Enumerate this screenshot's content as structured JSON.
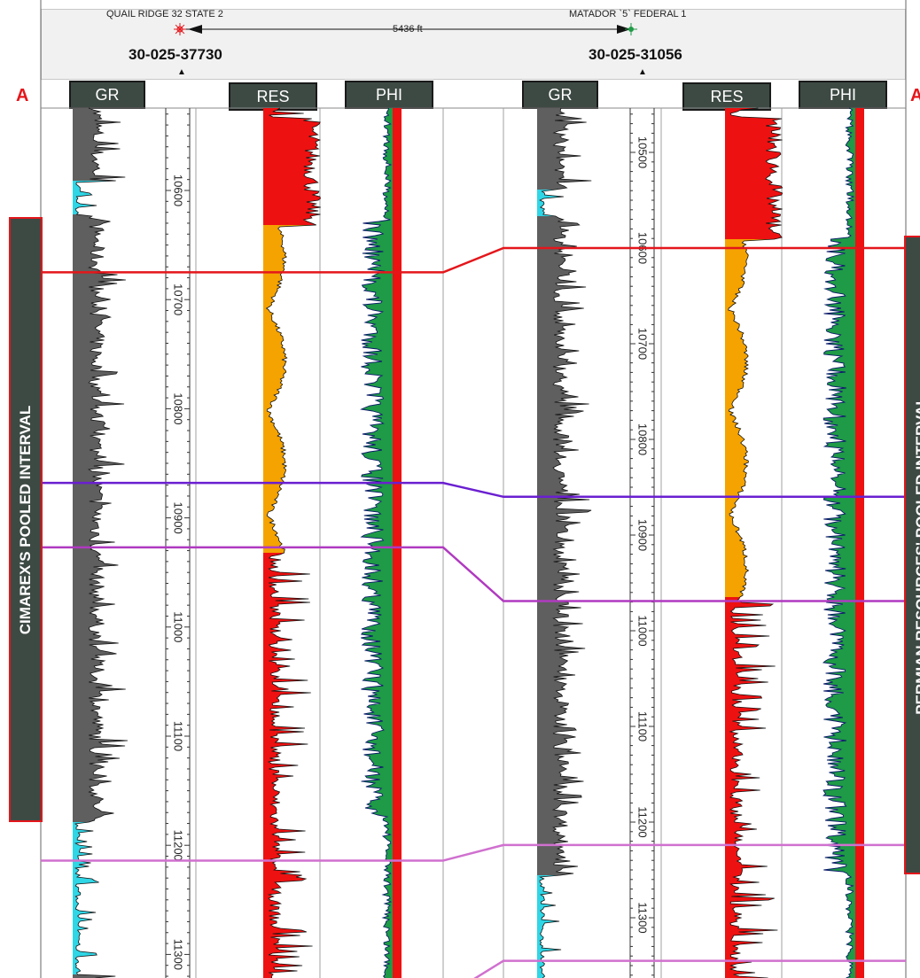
{
  "header": {
    "left_well": {
      "name": "QUAIL RIDGE 32 STATE 2",
      "api": "30-025-37730"
    },
    "right_well": {
      "name": "MATADOR `5` FEDERAL 1",
      "api": "30-025-31056"
    },
    "distance": "5436 ft"
  },
  "end_labels": {
    "left": "A",
    "right": "A"
  },
  "track_labels": [
    "GR",
    "RES",
    "PHI",
    "GR",
    "RES",
    "PHI"
  ],
  "intervals": {
    "left": "CIMAREX'S POOLED INTERVAL",
    "right": "PERMIAN RESOURCES' POOLED INTERVAL"
  },
  "depth_ticks": {
    "left": [
      "10600",
      "10700",
      "10800",
      "10900",
      "11000",
      "11100",
      "11200",
      "11300"
    ],
    "right": [
      "10500",
      "10600",
      "10700",
      "10800",
      "10900",
      "11000",
      "11100",
      "11200",
      "11300"
    ]
  },
  "formation_tops": [
    {
      "color": "#e4161b",
      "left_depth": 10675,
      "right_depth": 10600
    },
    {
      "color": "#6a1fd0",
      "left_depth": 10868,
      "right_depth": 10860
    },
    {
      "color": "#b03ac0",
      "left_depth": 10927,
      "right_depth": 10969
    },
    {
      "color": "#d070cf",
      "left_depth": 11214,
      "right_depth": 11224
    },
    {
      "color": "#d070cf",
      "left_depth": 11340,
      "right_depth": 11345
    }
  ],
  "colors": {
    "gr_fill": "#5f5f5f",
    "gr_clean": "#2fd6e6",
    "res_high": "#ee1111",
    "res_low": "#f5a300",
    "phi_fill": "#1f9a46",
    "phi_bg": "#ee1111",
    "grid": "#a0a0a0",
    "side_panel": "#3d4a44",
    "accent": "#e4161b"
  }
}
